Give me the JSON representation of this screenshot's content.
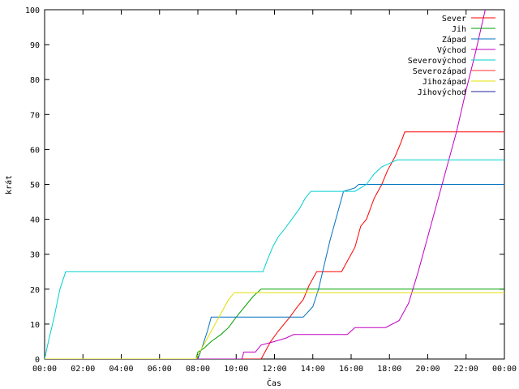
{
  "chart_data": {
    "type": "line",
    "title": "",
    "xlabel": "Čas",
    "ylabel": "krát",
    "xlim": [
      0,
      24
    ],
    "ylim": [
      0,
      100
    ],
    "x_ticks": [
      {
        "value": 0,
        "label": "00:00"
      },
      {
        "value": 2,
        "label": "02:00"
      },
      {
        "value": 4,
        "label": "04:00"
      },
      {
        "value": 6,
        "label": "06:00"
      },
      {
        "value": 8,
        "label": "08:00"
      },
      {
        "value": 10,
        "label": "10:00"
      },
      {
        "value": 12,
        "label": "12:00"
      },
      {
        "value": 14,
        "label": "14:00"
      },
      {
        "value": 16,
        "label": "16:00"
      },
      {
        "value": 18,
        "label": "18:00"
      },
      {
        "value": 20,
        "label": "20:00"
      },
      {
        "value": 22,
        "label": "22:00"
      },
      {
        "value": 24,
        "label": "00:00"
      }
    ],
    "y_ticks": [
      0,
      10,
      20,
      30,
      40,
      50,
      60,
      70,
      80,
      90,
      100
    ],
    "grid": false,
    "legend_position": "top-right",
    "series": [
      {
        "name": "Sever",
        "color": "#ff0000",
        "points": [
          [
            0,
            0
          ],
          [
            11.3,
            0
          ],
          [
            11.5,
            2
          ],
          [
            11.8,
            5
          ],
          [
            12.2,
            8
          ],
          [
            12.5,
            10
          ],
          [
            12.8,
            12
          ],
          [
            13.2,
            15
          ],
          [
            13.5,
            17
          ],
          [
            13.8,
            21
          ],
          [
            14.2,
            25
          ],
          [
            15.5,
            25
          ],
          [
            15.8,
            28
          ],
          [
            16.2,
            32
          ],
          [
            16.5,
            38
          ],
          [
            16.8,
            40
          ],
          [
            17.2,
            46
          ],
          [
            17.6,
            50
          ],
          [
            17.9,
            54
          ],
          [
            18.3,
            58
          ],
          [
            18.6,
            62
          ],
          [
            18.8,
            65
          ],
          [
            24,
            65
          ]
        ]
      },
      {
        "name": "Jih",
        "color": "#00a000",
        "points": [
          [
            0,
            0
          ],
          [
            7.9,
            0
          ],
          [
            8.0,
            2
          ],
          [
            8.3,
            3
          ],
          [
            8.7,
            5
          ],
          [
            9.2,
            7
          ],
          [
            9.6,
            9
          ],
          [
            10.0,
            12
          ],
          [
            10.3,
            14
          ],
          [
            10.6,
            16
          ],
          [
            10.9,
            18
          ],
          [
            11.3,
            20
          ],
          [
            24,
            20
          ]
        ]
      },
      {
        "name": "Západ",
        "color": "#0070c0",
        "points": [
          [
            0,
            0
          ],
          [
            8.0,
            0
          ],
          [
            8.2,
            3
          ],
          [
            8.5,
            8
          ],
          [
            8.7,
            12
          ],
          [
            11.5,
            12
          ],
          [
            13.5,
            12
          ],
          [
            14.0,
            15
          ],
          [
            14.3,
            20
          ],
          [
            14.6,
            27
          ],
          [
            14.9,
            34
          ],
          [
            15.3,
            42
          ],
          [
            15.6,
            48
          ],
          [
            16.2,
            49
          ],
          [
            16.4,
            50
          ],
          [
            24,
            50
          ]
        ]
      },
      {
        "name": "Východ",
        "color": "#c000c0",
        "points": [
          [
            0,
            0
          ],
          [
            10.3,
            0
          ],
          [
            10.4,
            2
          ],
          [
            11.0,
            2
          ],
          [
            11.3,
            4
          ],
          [
            12.0,
            5
          ],
          [
            12.6,
            6
          ],
          [
            13.0,
            7
          ],
          [
            15.8,
            7
          ],
          [
            16.0,
            8
          ],
          [
            16.2,
            9
          ],
          [
            17.8,
            9
          ],
          [
            18.5,
            11
          ],
          [
            19.0,
            16
          ],
          [
            19.5,
            25
          ],
          [
            20.0,
            35
          ],
          [
            20.5,
            45
          ],
          [
            21.0,
            55
          ],
          [
            21.5,
            65
          ],
          [
            22.0,
            77
          ],
          [
            22.5,
            88
          ],
          [
            23.0,
            100
          ]
        ]
      },
      {
        "name": "Severovýchod",
        "color": "#00d0d0",
        "points": [
          [
            0,
            0
          ],
          [
            0.2,
            5
          ],
          [
            0.5,
            12
          ],
          [
            0.8,
            20
          ],
          [
            1.1,
            25
          ],
          [
            11.4,
            25
          ],
          [
            11.6,
            28
          ],
          [
            11.9,
            32
          ],
          [
            12.2,
            35
          ],
          [
            12.5,
            37
          ],
          [
            12.9,
            40
          ],
          [
            13.3,
            43
          ],
          [
            13.6,
            46
          ],
          [
            13.9,
            48
          ],
          [
            16.2,
            48
          ],
          [
            16.8,
            50
          ],
          [
            17.2,
            53
          ],
          [
            17.6,
            55
          ],
          [
            18.0,
            56
          ],
          [
            18.4,
            57
          ],
          [
            24,
            57
          ]
        ]
      },
      {
        "name": "Severozápad",
        "color": "#ff3030",
        "points": []
      },
      {
        "name": "Jihozápad",
        "color": "#e0e000",
        "points": [
          [
            0,
            0
          ],
          [
            7.9,
            0
          ],
          [
            8.2,
            3
          ],
          [
            8.5,
            6
          ],
          [
            8.9,
            10
          ],
          [
            9.3,
            14
          ],
          [
            9.6,
            17
          ],
          [
            9.9,
            19
          ],
          [
            24,
            19
          ]
        ]
      },
      {
        "name": "Jihovýchod",
        "color": "#2020a0",
        "points": []
      }
    ]
  }
}
